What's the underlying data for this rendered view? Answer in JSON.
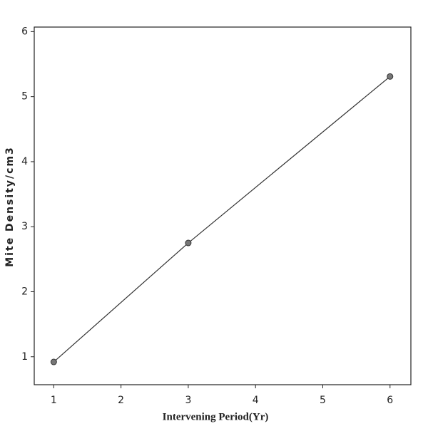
{
  "chart_data": {
    "type": "line",
    "x_label": "Intervening Period(Yr)",
    "y_label": "Mite Density/cm3",
    "x": [
      1,
      3,
      6
    ],
    "series": [
      {
        "color": "#333333",
        "values": [
          0.92,
          2.75,
          5.31
        ]
      }
    ],
    "xlim": [
      0.71,
      6.31
    ],
    "xticks": [
      1,
      2,
      3,
      4,
      5,
      6
    ],
    "ylim": [
      0.57,
      6.07
    ],
    "yticks": [
      1,
      2,
      3,
      4,
      5,
      6
    ],
    "grid": false,
    "markers": true
  }
}
